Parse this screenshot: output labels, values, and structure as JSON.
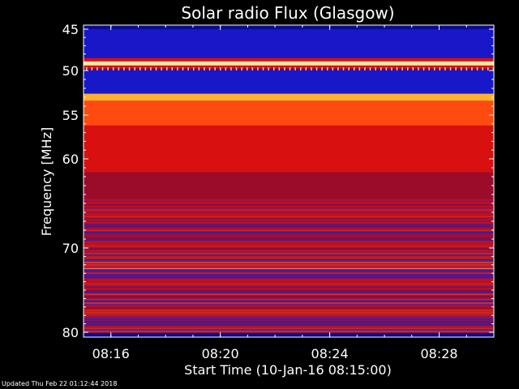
{
  "chart_data": {
    "type": "heatmap",
    "title": "Solar radio Flux (Glasgow)",
    "xlabel": "Start Time (10-Jan-16 08:15:00)",
    "ylabel": "Frequency [MHz]",
    "x_ticks": [
      "08:16",
      "08:20",
      "08:24",
      "08:28"
    ],
    "x_range": [
      "08:15:00",
      "08:30:00"
    ],
    "y_ticks": [
      45,
      50,
      55,
      60,
      70,
      80
    ],
    "y_range": [
      45,
      80
    ],
    "bands": [
      {
        "from": 45.0,
        "to": 45.6,
        "level": "blue"
      },
      {
        "from": 45.6,
        "to": 48.5,
        "level": "blue"
      },
      {
        "from": 48.5,
        "to": 48.9,
        "level": "red"
      },
      {
        "from": 48.9,
        "to": 49.4,
        "level": "saturated"
      },
      {
        "from": 49.4,
        "to": 49.8,
        "level": "red"
      },
      {
        "from": 49.8,
        "to": 52.6,
        "level": "blue"
      },
      {
        "from": 52.6,
        "to": 53.4,
        "level": "bright"
      },
      {
        "from": 53.4,
        "to": 56.2,
        "level": "orange"
      },
      {
        "from": 56.2,
        "to": 61.5,
        "level": "red"
      },
      {
        "from": 61.5,
        "to": 64.5,
        "level": "darkred"
      },
      {
        "from": 64.5,
        "to": 71.5,
        "level": "mixed"
      },
      {
        "from": 71.5,
        "to": 72.5,
        "level": "saturated"
      },
      {
        "from": 72.5,
        "to": 75.0,
        "level": "darkred"
      },
      {
        "from": 75.0,
        "to": 80.0,
        "level": "mixed"
      }
    ],
    "colors": {
      "blue": "#1818c8",
      "darkred": "#9a0c2a",
      "red": "#d81010",
      "orange": "#ff4a10",
      "bright": "#ffb030",
      "saturated": "#ffe8a0"
    }
  },
  "footer": "Updated Thu Feb 22 01:12:44 2018"
}
